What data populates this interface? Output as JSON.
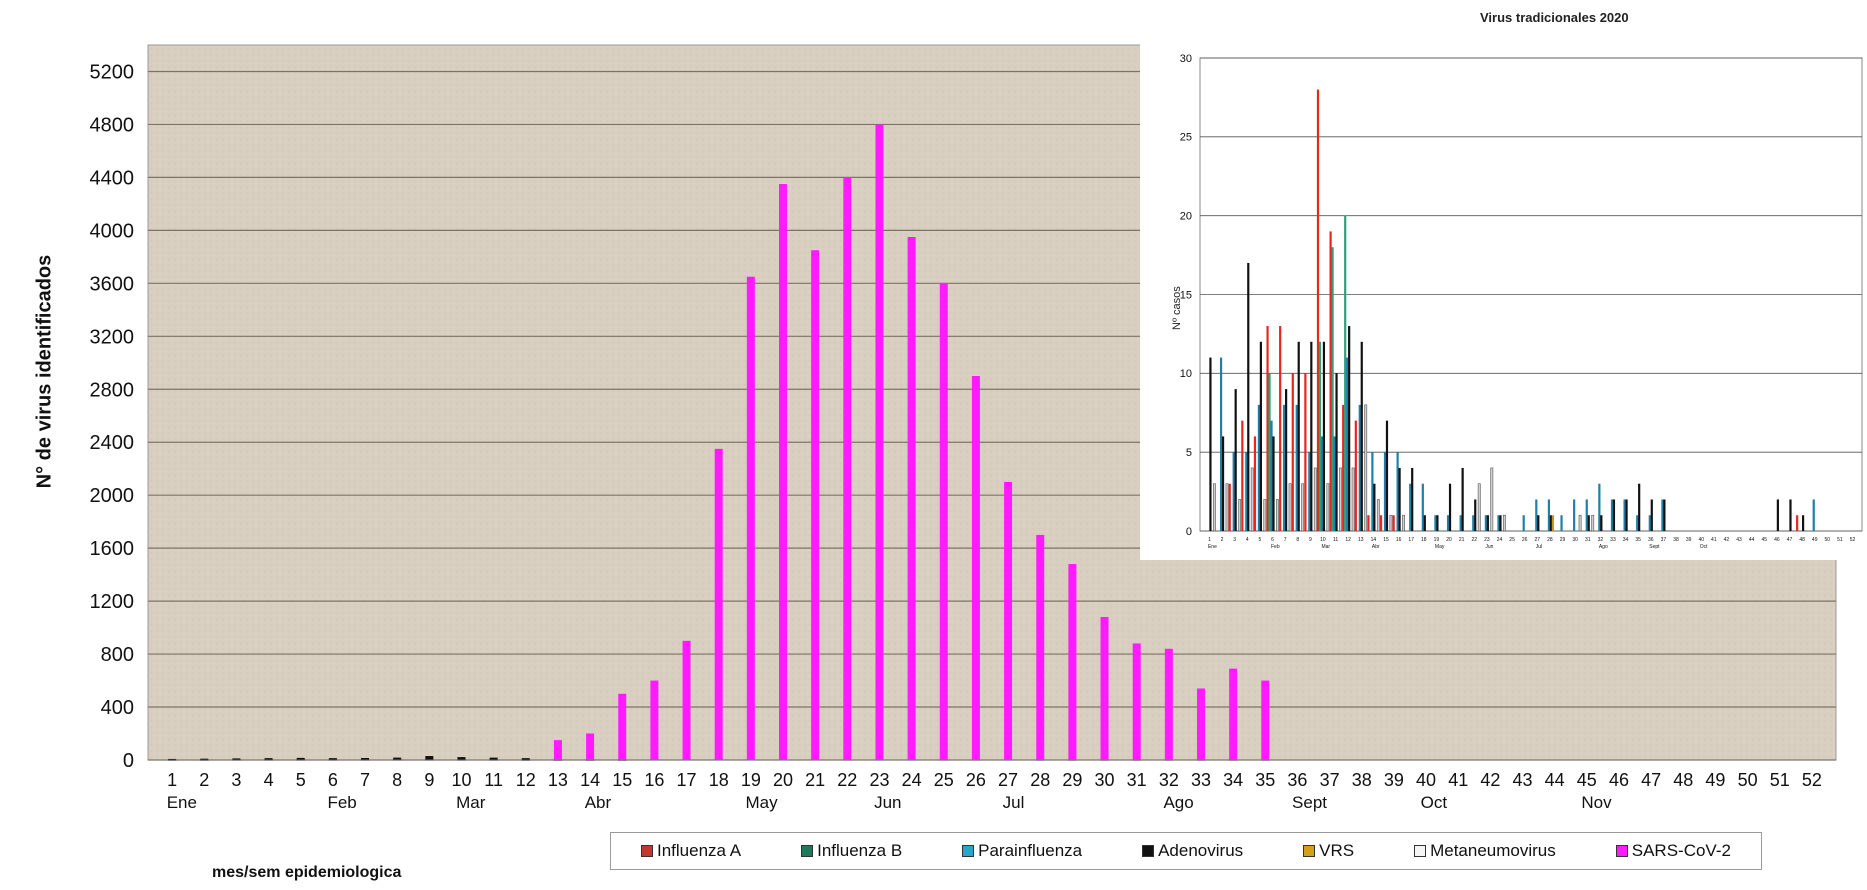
{
  "chart_data": [
    {
      "type": "bar",
      "xlabel": "mes/sem  epidemiologica",
      "ylabel": "N° de virus identificados",
      "ylim": [
        0,
        5400
      ],
      "yticks": [
        0,
        400,
        800,
        1200,
        1600,
        2000,
        2400,
        2800,
        3200,
        3600,
        4000,
        4400,
        4800,
        5200
      ],
      "grid": true,
      "legend_position": "bottom",
      "categories": [
        "1",
        "2",
        "3",
        "4",
        "5",
        "6",
        "7",
        "8",
        "9",
        "10",
        "11",
        "12",
        "13",
        "14",
        "15",
        "16",
        "17",
        "18",
        "19",
        "20",
        "21",
        "22",
        "23",
        "24",
        "25",
        "26",
        "27",
        "28",
        "29",
        "30",
        "31",
        "32",
        "33",
        "34",
        "35",
        "36",
        "37",
        "38",
        "39",
        "40",
        "41",
        "42",
        "43",
        "44",
        "45",
        "46",
        "47",
        "48",
        "49",
        "50",
        "51",
        "52"
      ],
      "months": [
        {
          "label": "Ene",
          "week": 1
        },
        {
          "label": "Feb",
          "week": 6
        },
        {
          "label": "Mar",
          "week": 10
        },
        {
          "label": "Abr",
          "week": 14
        },
        {
          "label": "May",
          "week": 19
        },
        {
          "label": "Jun",
          "week": 23
        },
        {
          "label": "Jul",
          "week": 27
        },
        {
          "label": "Ago",
          "week": 32
        },
        {
          "label": "Sept",
          "week": 36
        },
        {
          "label": "Oct",
          "week": 40
        },
        {
          "label": "Nov",
          "week": 45
        }
      ],
      "series": [
        {
          "name": "Influenza A",
          "color": "#c0392b",
          "values": [
            2,
            3,
            4,
            5,
            6,
            5,
            4,
            6,
            3,
            2,
            2,
            1,
            1,
            1,
            1,
            1,
            1,
            1,
            0,
            0,
            0,
            0,
            0,
            0,
            0,
            0,
            0,
            0,
            0,
            0,
            0,
            0,
            0,
            0,
            0,
            0,
            0,
            0,
            0,
            0,
            0,
            0,
            0,
            0,
            0,
            0,
            0,
            0,
            0,
            0,
            0,
            0
          ]
        },
        {
          "name": "Influenza B",
          "color": "#1e7a5a",
          "values": [
            1,
            2,
            3,
            4,
            4,
            3,
            3,
            4,
            5,
            4,
            3,
            2,
            1,
            1,
            1,
            0,
            0,
            0,
            0,
            0,
            0,
            0,
            0,
            0,
            0,
            0,
            0,
            0,
            0,
            0,
            0,
            0,
            0,
            0,
            0,
            0,
            0,
            0,
            0,
            0,
            0,
            0,
            0,
            0,
            0,
            0,
            0,
            0,
            0,
            0,
            0,
            0
          ]
        },
        {
          "name": "Parainfluenza",
          "color": "#29a6c7",
          "values": [
            4,
            5,
            6,
            7,
            8,
            8,
            7,
            6,
            5,
            5,
            4,
            3,
            2,
            2,
            1,
            1,
            1,
            1,
            1,
            1,
            0,
            0,
            1,
            1,
            0,
            0,
            1,
            1,
            0,
            0,
            0,
            0,
            0,
            0,
            0,
            0,
            0,
            0,
            0,
            0,
            0,
            0,
            0,
            0,
            0,
            0,
            0,
            0,
            0,
            0,
            0,
            0
          ]
        },
        {
          "name": "Adenovirus",
          "color": "#111111",
          "values": [
            8,
            10,
            12,
            14,
            16,
            14,
            15,
            18,
            30,
            22,
            18,
            14,
            10,
            8,
            6,
            6,
            5,
            5,
            4,
            4,
            4,
            3,
            3,
            3,
            3,
            3,
            3,
            2,
            2,
            2,
            2,
            2,
            2,
            2,
            2,
            0,
            0,
            0,
            0,
            0,
            0,
            0,
            0,
            0,
            0,
            0,
            0,
            0,
            0,
            0,
            0,
            0
          ]
        },
        {
          "name": "VRS",
          "color": "#d4a017",
          "values": [
            0,
            0,
            0,
            0,
            0,
            0,
            0,
            0,
            0,
            0,
            0,
            0,
            0,
            0,
            0,
            0,
            0,
            0,
            0,
            0,
            0,
            0,
            0,
            0,
            0,
            0,
            0,
            0,
            0,
            0,
            0,
            0,
            0,
            0,
            0,
            0,
            0,
            0,
            0,
            0,
            0,
            0,
            0,
            0,
            0,
            0,
            0,
            0,
            0,
            0,
            0,
            0
          ]
        },
        {
          "name": "Metaneumovirus",
          "color": "#f5f5f5",
          "values": [
            1,
            1,
            2,
            2,
            2,
            2,
            2,
            3,
            3,
            2,
            2,
            1,
            1,
            1,
            1,
            0,
            0,
            0,
            0,
            0,
            0,
            0,
            0,
            0,
            0,
            0,
            0,
            0,
            0,
            0,
            0,
            0,
            0,
            0,
            0,
            0,
            0,
            0,
            0,
            0,
            0,
            0,
            0,
            0,
            0,
            0,
            0,
            0,
            0,
            0,
            0,
            0
          ]
        },
        {
          "name": "SARS-CoV-2",
          "color": "#ff1aff",
          "values": [
            0,
            0,
            0,
            0,
            0,
            0,
            0,
            0,
            0,
            0,
            0,
            0,
            150,
            200,
            500,
            600,
            900,
            2350,
            3650,
            4350,
            3850,
            4400,
            4800,
            3950,
            3600,
            2900,
            2100,
            1700,
            1480,
            1080,
            880,
            840,
            540,
            690,
            600,
            0,
            0,
            0,
            0,
            0,
            0,
            0,
            0,
            0,
            0,
            0,
            0,
            0,
            0,
            0,
            0,
            0
          ]
        }
      ]
    },
    {
      "type": "bar",
      "title": "Virus tradicionales 2020",
      "ylabel": "Nº casos",
      "ylim": [
        0,
        30
      ],
      "yticks": [
        0,
        5,
        10,
        15,
        20,
        25,
        30
      ],
      "grid": true,
      "categories": [
        "1",
        "2",
        "3",
        "4",
        "5",
        "6",
        "7",
        "8",
        "9",
        "10",
        "11",
        "12",
        "13",
        "14",
        "15",
        "16",
        "17",
        "18",
        "19",
        "20",
        "21",
        "22",
        "23",
        "24",
        "25",
        "26",
        "27",
        "28",
        "29",
        "30",
        "31",
        "32",
        "33",
        "34",
        "35",
        "36",
        "37",
        "38",
        "39",
        "40",
        "41",
        "42",
        "43",
        "44",
        "45",
        "46",
        "47",
        "48",
        "49",
        "50",
        "51",
        "52"
      ],
      "months": [
        {
          "label": "Ene",
          "week": 1
        },
        {
          "label": "Feb",
          "week": 6
        },
        {
          "label": "Mar",
          "week": 10
        },
        {
          "label": "Abr",
          "week": 14
        },
        {
          "label": "May",
          "week": 19
        },
        {
          "label": "Jun",
          "week": 23
        },
        {
          "label": "Jul",
          "week": 27
        },
        {
          "label": "Ago",
          "week": 32
        },
        {
          "label": "Sept",
          "week": 36
        },
        {
          "label": "Oct",
          "week": 40
        }
      ],
      "series": [
        {
          "name": "Influenza A",
          "color": "#e8261c",
          "values": [
            0,
            0,
            3,
            7,
            6,
            13,
            13,
            10,
            10,
            28,
            19,
            8,
            7,
            1,
            1,
            1,
            0,
            0,
            0,
            0,
            0,
            0,
            0,
            0,
            0,
            0,
            0,
            0,
            0,
            0,
            0,
            0,
            0,
            0,
            0,
            0,
            0,
            0,
            0,
            0,
            0,
            0,
            0,
            0,
            0,
            0,
            0,
            1,
            0,
            0,
            0,
            0
          ]
        },
        {
          "name": "Influenza B",
          "color": "#2aa37a",
          "values": [
            0,
            0,
            0,
            0,
            0,
            10,
            0,
            0,
            0,
            12,
            18,
            20,
            0,
            0,
            0,
            0,
            0,
            0,
            0,
            0,
            0,
            0,
            0,
            0,
            0,
            0,
            0,
            0,
            0,
            0,
            0,
            0,
            0,
            0,
            0,
            0,
            0,
            0,
            0,
            0,
            0,
            0,
            0,
            0,
            0,
            0,
            0,
            0,
            0,
            0,
            0,
            0
          ]
        },
        {
          "name": "Parainfluenza",
          "color": "#1f7fa8",
          "values": [
            0,
            11,
            5,
            5,
            8,
            7,
            8,
            8,
            5,
            6,
            6,
            11,
            8,
            5,
            5,
            5,
            3,
            3,
            1,
            1,
            1,
            1,
            1,
            1,
            0,
            1,
            2,
            2,
            1,
            2,
            2,
            3,
            2,
            2,
            1,
            1,
            2,
            0,
            0,
            0,
            0,
            0,
            0,
            0,
            0,
            0,
            0,
            0,
            2,
            0,
            0,
            0
          ]
        },
        {
          "name": "Adenovirus",
          "color": "#111111",
          "values": [
            11,
            6,
            9,
            17,
            12,
            6,
            9,
            12,
            12,
            12,
            10,
            13,
            12,
            3,
            7,
            4,
            4,
            1,
            1,
            3,
            4,
            2,
            1,
            1,
            0,
            0,
            1,
            1,
            0,
            0,
            1,
            1,
            2,
            2,
            3,
            2,
            2,
            0,
            0,
            0,
            0,
            0,
            0,
            0,
            0,
            2,
            2,
            1,
            0,
            0,
            0,
            0
          ]
        },
        {
          "name": "VRS",
          "color": "#c8941a",
          "values": [
            0,
            0,
            0,
            0,
            0,
            0,
            0,
            0,
            0,
            0,
            0,
            0,
            0,
            0,
            0,
            0,
            0,
            0,
            0,
            0,
            0,
            0,
            0,
            0,
            0,
            0,
            0,
            1,
            0,
            0,
            0,
            0,
            0,
            0,
            0,
            0,
            0,
            0,
            0,
            0,
            0,
            0,
            0,
            0,
            0,
            0,
            0,
            0,
            0,
            0,
            0,
            0
          ]
        },
        {
          "name": "Metaneumovirus",
          "color": "#cfcfcf",
          "values": [
            3,
            3,
            2,
            4,
            2,
            2,
            3,
            3,
            4,
            3,
            4,
            4,
            8,
            2,
            1,
            1,
            0,
            0,
            0,
            0,
            0,
            3,
            4,
            1,
            0,
            0,
            0,
            0,
            0,
            1,
            1,
            0,
            0,
            0,
            0,
            0,
            0,
            0,
            0,
            0,
            0,
            0,
            0,
            0,
            0,
            0,
            0,
            0,
            0,
            0,
            0,
            0
          ]
        }
      ]
    }
  ]
}
